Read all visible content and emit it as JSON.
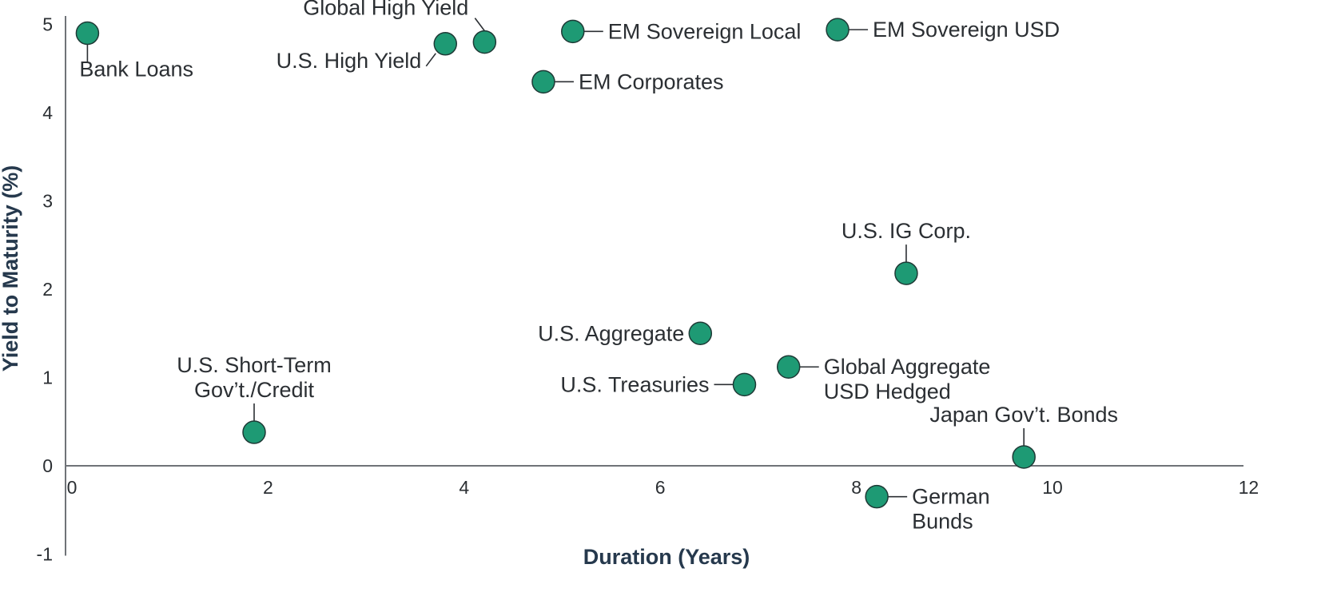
{
  "chart_data": {
    "type": "scatter",
    "title": "",
    "xlabel": "Duration (Years)",
    "ylabel": "Yield to Maturity (%)",
    "xlim": [
      0,
      12
    ],
    "ylim": [
      -1,
      5
    ],
    "x_ticks": [
      0,
      2,
      4,
      6,
      8,
      10,
      12
    ],
    "y_ticks": [
      -1,
      0,
      1,
      2,
      3,
      4,
      5
    ],
    "grid": false,
    "legend": "none",
    "point_color": "#1e9a74",
    "points": [
      {
        "label": [
          "Bank Loans"
        ],
        "x": 0.15,
        "y": 4.9
      },
      {
        "label": [
          "U.S. High Yield"
        ],
        "x": 3.8,
        "y": 4.78
      },
      {
        "label": [
          "Global High Yield"
        ],
        "x": 4.2,
        "y": 4.8
      },
      {
        "label": [
          "EM Sovereign Local"
        ],
        "x": 5.1,
        "y": 4.92
      },
      {
        "label": [
          "EM Sovereign USD"
        ],
        "x": 7.8,
        "y": 4.94
      },
      {
        "label": [
          "EM Corporates"
        ],
        "x": 4.8,
        "y": 4.35
      },
      {
        "label": [
          "U.S. IG Corp."
        ],
        "x": 8.5,
        "y": 2.18
      },
      {
        "label": [
          "U.S. Aggregate"
        ],
        "x": 6.4,
        "y": 1.5
      },
      {
        "label": [
          "Global Aggregate",
          "USD Hedged"
        ],
        "x": 7.3,
        "y": 1.12
      },
      {
        "label": [
          "U.S. Treasuries"
        ],
        "x": 6.85,
        "y": 0.92
      },
      {
        "label": [
          "U.S. Short-Term",
          "Gov’t./Credit"
        ],
        "x": 1.85,
        "y": 0.38
      },
      {
        "label": [
          "Japan Gov’t. Bonds"
        ],
        "x": 9.7,
        "y": 0.1
      },
      {
        "label": [
          "German",
          "Bunds"
        ],
        "x": 8.2,
        "y": -0.35
      }
    ]
  }
}
